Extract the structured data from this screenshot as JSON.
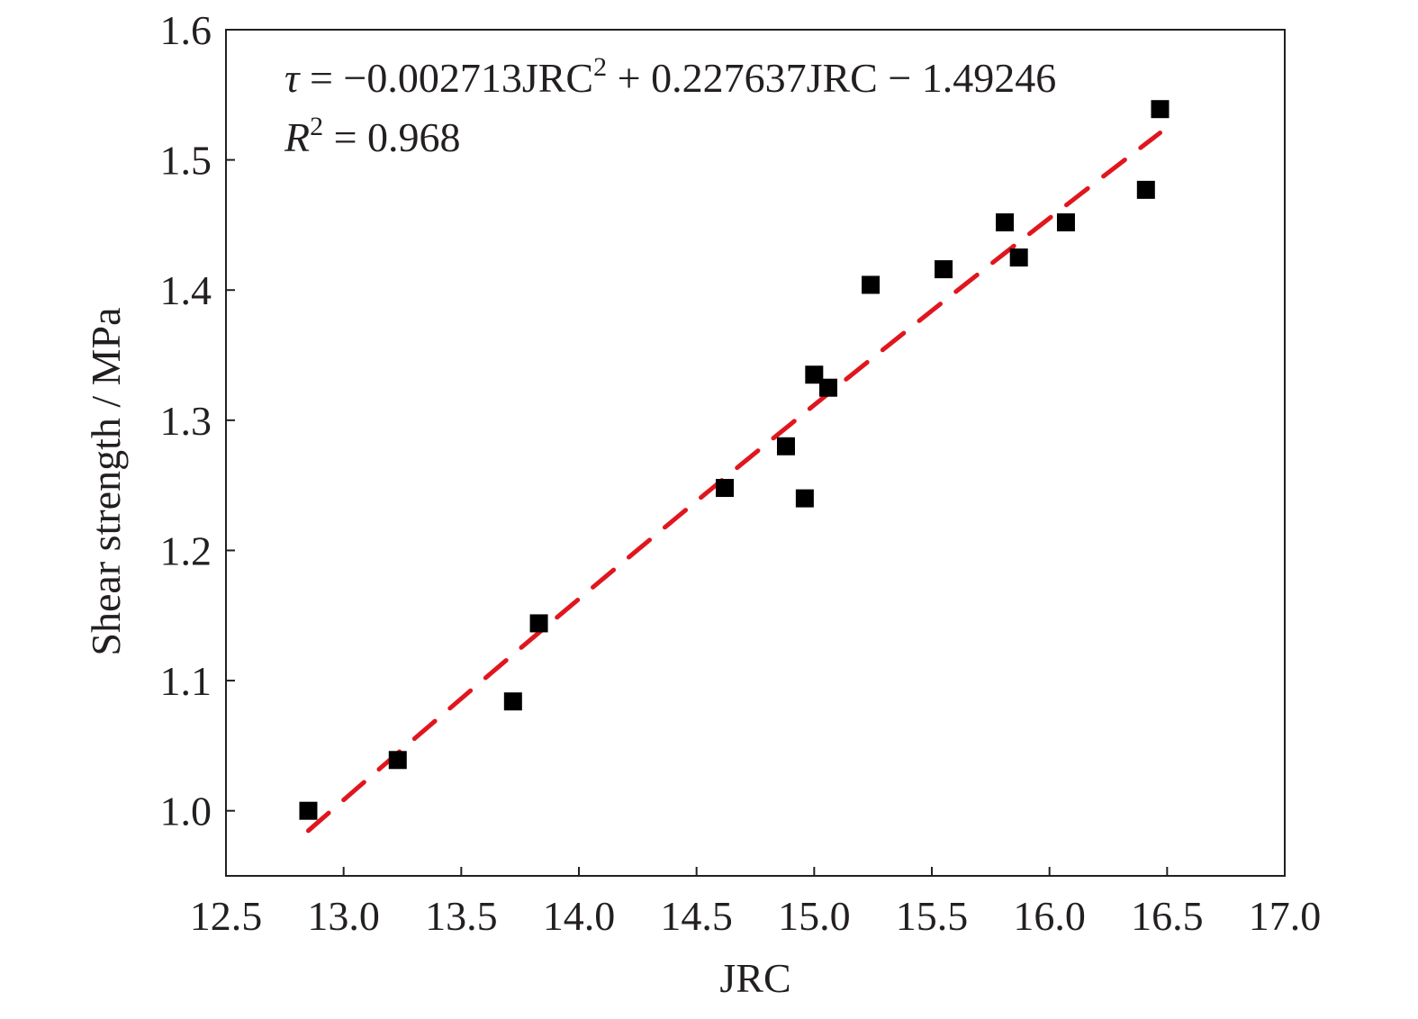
{
  "chart_data": {
    "type": "scatter",
    "title": "",
    "xlabel": "JRC",
    "ylabel": "Shear strength / MPa",
    "xlim": [
      12.5,
      17.0
    ],
    "ylim": [
      0.95,
      1.6
    ],
    "xticks": [
      12.5,
      13.0,
      13.5,
      14.0,
      14.5,
      15.0,
      15.5,
      16.0,
      16.5,
      17.0
    ],
    "xtick_labels": [
      "12.5",
      "13.0",
      "13.5",
      "14.0",
      "14.5",
      "15.0",
      "15.5",
      "16.0",
      "16.5",
      "17.0"
    ],
    "yticks": [
      1.0,
      1.1,
      1.2,
      1.3,
      1.4,
      1.5,
      1.6
    ],
    "ytick_labels": [
      "1.0",
      "1.1",
      "1.2",
      "1.3",
      "1.4",
      "1.5",
      "1.6"
    ],
    "grid": false,
    "legend": "none",
    "series": [
      {
        "marker": "square",
        "color": "#000000",
        "points": [
          {
            "x": 12.85,
            "y": 1.0
          },
          {
            "x": 13.23,
            "y": 1.039
          },
          {
            "x": 13.72,
            "y": 1.084
          },
          {
            "x": 13.83,
            "y": 1.144
          },
          {
            "x": 14.62,
            "y": 1.248
          },
          {
            "x": 14.88,
            "y": 1.28
          },
          {
            "x": 14.96,
            "y": 1.24
          },
          {
            "x": 15.0,
            "y": 1.335
          },
          {
            "x": 15.06,
            "y": 1.325
          },
          {
            "x": 15.24,
            "y": 1.404
          },
          {
            "x": 15.55,
            "y": 1.416
          },
          {
            "x": 15.81,
            "y": 1.452
          },
          {
            "x": 15.87,
            "y": 1.425
          },
          {
            "x": 16.07,
            "y": 1.452
          },
          {
            "x": 16.41,
            "y": 1.477
          },
          {
            "x": 16.47,
            "y": 1.539
          }
        ]
      }
    ],
    "fit": {
      "style": "dashed",
      "color": "#e0161e",
      "coefficients": {
        "a": -0.002713,
        "b": 0.227637,
        "c": -1.49246
      },
      "x_range": [
        12.85,
        16.47
      ]
    },
    "annotations": {
      "equation_lhs": "τ",
      "equation_rhs": " = −0.002713JRC",
      "equation_sup": "2",
      "equation_rest": " + 0.227637JRC − 1.49246",
      "r2_label": "R",
      "r2_sup": "2",
      "r2_value": " = 0.968"
    }
  }
}
